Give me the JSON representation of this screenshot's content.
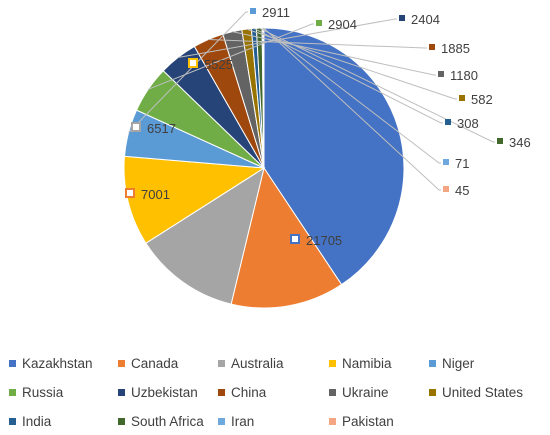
{
  "chart_data": {
    "type": "pie",
    "title": "",
    "legend_position": "bottom",
    "slices": [
      {
        "name": "Kazakhstan",
        "value": 21705,
        "color": "#4472C4",
        "label_style": "inside"
      },
      {
        "name": "Canada",
        "value": 7001,
        "color": "#ED7D31",
        "label_style": "inside"
      },
      {
        "name": "Australia",
        "value": 6517,
        "color": "#A5A5A5",
        "label_style": "inside"
      },
      {
        "name": "Namibia",
        "value": 5525,
        "color": "#FFC000",
        "label_style": "inside"
      },
      {
        "name": "Niger",
        "value": 2911,
        "color": "#5B9BD5",
        "label_style": "outside"
      },
      {
        "name": "Russia",
        "value": 2904,
        "color": "#70AD47",
        "label_style": "outside"
      },
      {
        "name": "Uzbekistan",
        "value": 2404,
        "color": "#264478",
        "label_style": "outside"
      },
      {
        "name": "China",
        "value": 1885,
        "color": "#9E480E",
        "label_style": "outside"
      },
      {
        "name": "Ukraine",
        "value": 1180,
        "color": "#636363",
        "label_style": "outside"
      },
      {
        "name": "United States",
        "value": 582,
        "color": "#997300",
        "label_style": "outside"
      },
      {
        "name": "India",
        "value": 308,
        "color": "#255E91",
        "label_style": "outside"
      },
      {
        "name": "South Africa",
        "value": 346,
        "color": "#43682B",
        "label_style": "outside"
      },
      {
        "name": "Iran",
        "value": 71,
        "color": "#6FA8DC",
        "label_style": "outside"
      },
      {
        "name": "Pakistan",
        "value": 45,
        "color": "#F4A582",
        "label_style": "outside"
      }
    ]
  }
}
